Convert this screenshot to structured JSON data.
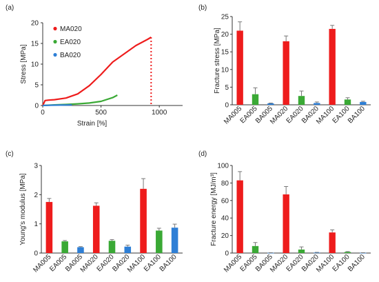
{
  "chart_data": [
    {
      "panel": "(a)",
      "type": "line",
      "xlabel": "Strain [%]",
      "ylabel": "Stress [MPa]",
      "xlim": [
        0,
        1200
      ],
      "ylim": [
        0,
        20
      ],
      "xticks": [
        0,
        500,
        1000
      ],
      "yticks": [
        0,
        5,
        10,
        15,
        20
      ],
      "legend": "top-left",
      "series": [
        {
          "name": "MA020",
          "color": "#ee1c1c",
          "x": [
            0,
            20,
            50,
            100,
            200,
            300,
            400,
            500,
            600,
            700,
            800,
            900,
            930
          ],
          "y": [
            0,
            1.2,
            1.3,
            1.4,
            1.8,
            2.8,
            4.8,
            7.5,
            10.5,
            12.5,
            14.5,
            16.0,
            16.5
          ],
          "break_x": 930
        },
        {
          "name": "EA020",
          "color": "#3aa935",
          "x": [
            0,
            100,
            200,
            300,
            400,
            500,
            600,
            640
          ],
          "y": [
            0,
            0.15,
            0.25,
            0.4,
            0.6,
            1.0,
            1.9,
            2.5
          ]
        },
        {
          "name": "BA020",
          "color": "#2e7fd6",
          "x": [
            0,
            50,
            100,
            150,
            200,
            250
          ],
          "y": [
            0,
            0.05,
            0.08,
            0.1,
            0.12,
            0.15
          ]
        }
      ]
    },
    {
      "panel": "(b)",
      "type": "bar",
      "ylabel": "Fracture stress [MPa]",
      "ylim": [
        0,
        25
      ],
      "yticks": [
        0,
        5,
        10,
        15,
        20,
        25
      ],
      "categories": [
        "MA005",
        "EA005",
        "BA005",
        "MA020",
        "EA020",
        "BA020",
        "MA100",
        "EA100",
        "BA100"
      ],
      "values": [
        21.0,
        3.0,
        0.4,
        18.0,
        2.5,
        0.5,
        21.5,
        1.5,
        0.8
      ],
      "errors": [
        2.5,
        1.8,
        0.1,
        1.5,
        1.4,
        0.3,
        1.0,
        0.5,
        0.2
      ]
    },
    {
      "panel": "(c)",
      "type": "bar",
      "ylabel": "Young's modulus [MPa]",
      "ylim": [
        0,
        3
      ],
      "yticks": [
        0,
        1,
        2,
        3
      ],
      "categories": [
        "MA005",
        "EA005",
        "BA005",
        "MA020",
        "EA020",
        "BA020",
        "MA100",
        "EA100",
        "BA100"
      ],
      "values": [
        1.75,
        0.4,
        0.2,
        1.62,
        0.42,
        0.22,
        2.2,
        0.77,
        0.87
      ],
      "errors": [
        0.12,
        0.03,
        0.02,
        0.1,
        0.04,
        0.05,
        0.35,
        0.08,
        0.12
      ]
    },
    {
      "panel": "(d)",
      "type": "bar",
      "ylabel": "Fracture energy [MJ/m³]",
      "ylim": [
        0,
        100
      ],
      "yticks": [
        0,
        20,
        40,
        60,
        80,
        100
      ],
      "categories": [
        "MA005",
        "EA005",
        "BA005",
        "MA020",
        "EA020",
        "BA020",
        "MA100",
        "EA100",
        "BA100"
      ],
      "values": [
        83,
        8,
        0.3,
        67,
        4,
        0.5,
        23.5,
        1.2,
        0.3
      ],
      "errors": [
        10,
        4,
        0.1,
        9,
        3,
        0.3,
        3,
        0.5,
        0.1
      ]
    }
  ],
  "colors": {
    "MA": "#ee1c1c",
    "EA": "#3aa935",
    "BA": "#2e7fd6",
    "axis": "#333333",
    "error": "#777777"
  }
}
